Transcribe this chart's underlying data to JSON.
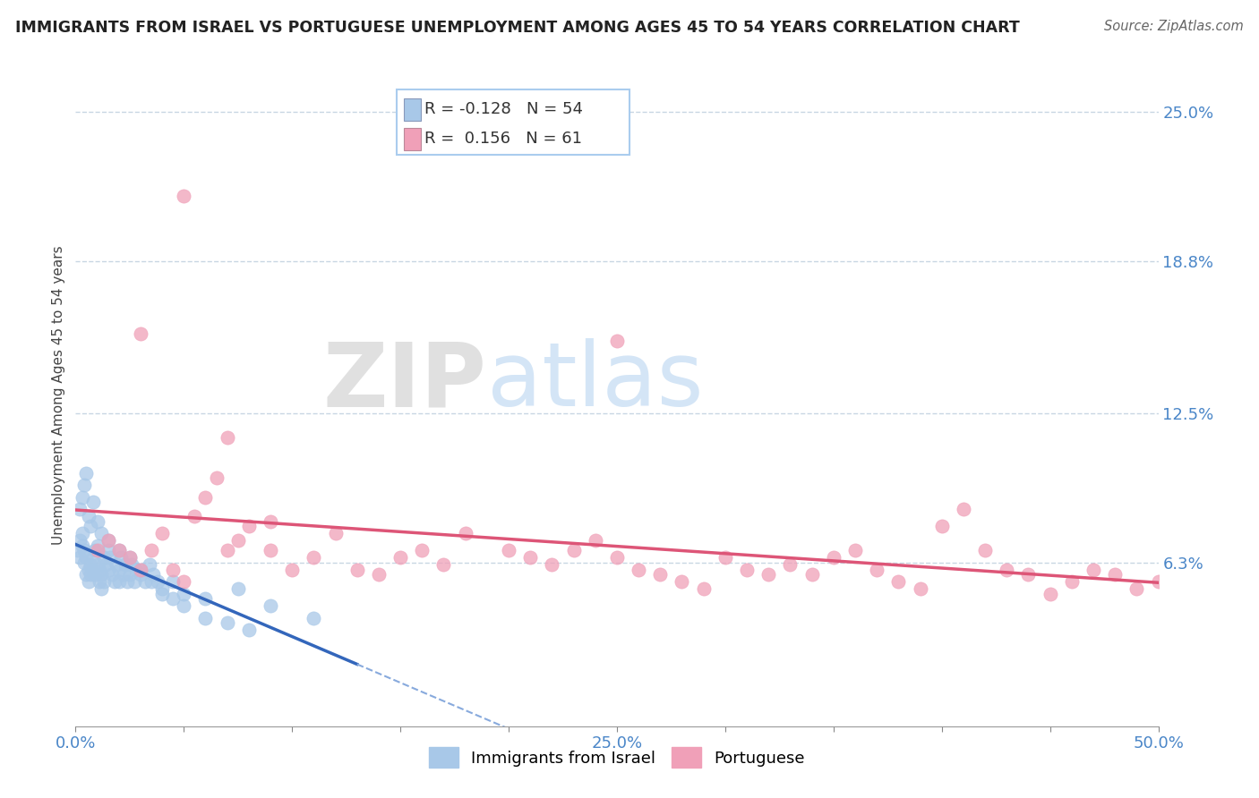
{
  "title": "IMMIGRANTS FROM ISRAEL VS PORTUGUESE UNEMPLOYMENT AMONG AGES 45 TO 54 YEARS CORRELATION CHART",
  "source": "Source: ZipAtlas.com",
  "ylabel": "Unemployment Among Ages 45 to 54 years",
  "x_min": 0.0,
  "x_max": 0.5,
  "y_min": -0.005,
  "y_max": 0.27,
  "y_ticks": [
    0.063,
    0.125,
    0.188,
    0.25
  ],
  "y_tick_labels": [
    "6.3%",
    "12.5%",
    "18.8%",
    "25.0%"
  ],
  "israel_color": "#a8c8e8",
  "portuguese_color": "#f0a0b8",
  "israel_R": -0.128,
  "israel_N": 54,
  "portuguese_R": 0.156,
  "portuguese_N": 61,
  "trend_israel_solid_color": "#3366bb",
  "trend_israel_dash_color": "#88aadd",
  "trend_portuguese_color": "#dd5577",
  "watermark_zip": "ZIP",
  "watermark_atlas": "atlas",
  "background_color": "#ffffff",
  "grid_color": "#bbccdd",
  "legend_border_color": "#aaccee",
  "israel_scatter_x": [
    0.001,
    0.002,
    0.002,
    0.003,
    0.003,
    0.004,
    0.004,
    0.005,
    0.005,
    0.006,
    0.006,
    0.007,
    0.007,
    0.008,
    0.008,
    0.009,
    0.009,
    0.01,
    0.01,
    0.011,
    0.011,
    0.012,
    0.012,
    0.013,
    0.013,
    0.014,
    0.015,
    0.015,
    0.016,
    0.017,
    0.018,
    0.019,
    0.02,
    0.02,
    0.021,
    0.022,
    0.023,
    0.024,
    0.025,
    0.026,
    0.027,
    0.028,
    0.03,
    0.032,
    0.034,
    0.036,
    0.038,
    0.04,
    0.045,
    0.05,
    0.06,
    0.075,
    0.09,
    0.11
  ],
  "israel_scatter_y": [
    0.068,
    0.072,
    0.065,
    0.075,
    0.07,
    0.068,
    0.063,
    0.065,
    0.058,
    0.06,
    0.055,
    0.062,
    0.058,
    0.065,
    0.06,
    0.068,
    0.058,
    0.07,
    0.062,
    0.055,
    0.06,
    0.052,
    0.058,
    0.065,
    0.055,
    0.062,
    0.068,
    0.06,
    0.065,
    0.058,
    0.055,
    0.062,
    0.06,
    0.055,
    0.065,
    0.058,
    0.062,
    0.055,
    0.058,
    0.062,
    0.055,
    0.06,
    0.058,
    0.055,
    0.062,
    0.058,
    0.055,
    0.052,
    0.055,
    0.05,
    0.048,
    0.052,
    0.045,
    0.04
  ],
  "israel_scatter_x2": [
    0.002,
    0.003,
    0.004,
    0.005,
    0.006,
    0.007,
    0.008,
    0.01,
    0.012,
    0.015,
    0.02,
    0.025,
    0.03,
    0.035,
    0.04,
    0.045,
    0.05,
    0.06,
    0.07,
    0.08
  ],
  "israel_scatter_y2": [
    0.085,
    0.09,
    0.095,
    0.1,
    0.082,
    0.078,
    0.088,
    0.08,
    0.075,
    0.072,
    0.068,
    0.065,
    0.06,
    0.055,
    0.05,
    0.048,
    0.045,
    0.04,
    0.038,
    0.035
  ],
  "portuguese_scatter_x": [
    0.01,
    0.015,
    0.02,
    0.025,
    0.03,
    0.035,
    0.04,
    0.045,
    0.05,
    0.055,
    0.06,
    0.065,
    0.07,
    0.075,
    0.08,
    0.09,
    0.1,
    0.11,
    0.12,
    0.13,
    0.14,
    0.15,
    0.16,
    0.17,
    0.18,
    0.2,
    0.21,
    0.22,
    0.23,
    0.24,
    0.25,
    0.26,
    0.27,
    0.28,
    0.29,
    0.3,
    0.31,
    0.32,
    0.33,
    0.34,
    0.35,
    0.36,
    0.37,
    0.38,
    0.39,
    0.4,
    0.41,
    0.42,
    0.43,
    0.44,
    0.45,
    0.46,
    0.47,
    0.48,
    0.49,
    0.5,
    0.03,
    0.05,
    0.07,
    0.09,
    0.25
  ],
  "portuguese_scatter_y": [
    0.068,
    0.072,
    0.068,
    0.065,
    0.06,
    0.068,
    0.075,
    0.06,
    0.055,
    0.082,
    0.09,
    0.098,
    0.068,
    0.072,
    0.078,
    0.068,
    0.06,
    0.065,
    0.075,
    0.06,
    0.058,
    0.065,
    0.068,
    0.062,
    0.075,
    0.068,
    0.065,
    0.062,
    0.068,
    0.072,
    0.065,
    0.06,
    0.058,
    0.055,
    0.052,
    0.065,
    0.06,
    0.058,
    0.062,
    0.058,
    0.065,
    0.068,
    0.06,
    0.055,
    0.052,
    0.078,
    0.085,
    0.068,
    0.06,
    0.058,
    0.05,
    0.055,
    0.06,
    0.058,
    0.052,
    0.055,
    0.158,
    0.215,
    0.115,
    0.08,
    0.155
  ]
}
